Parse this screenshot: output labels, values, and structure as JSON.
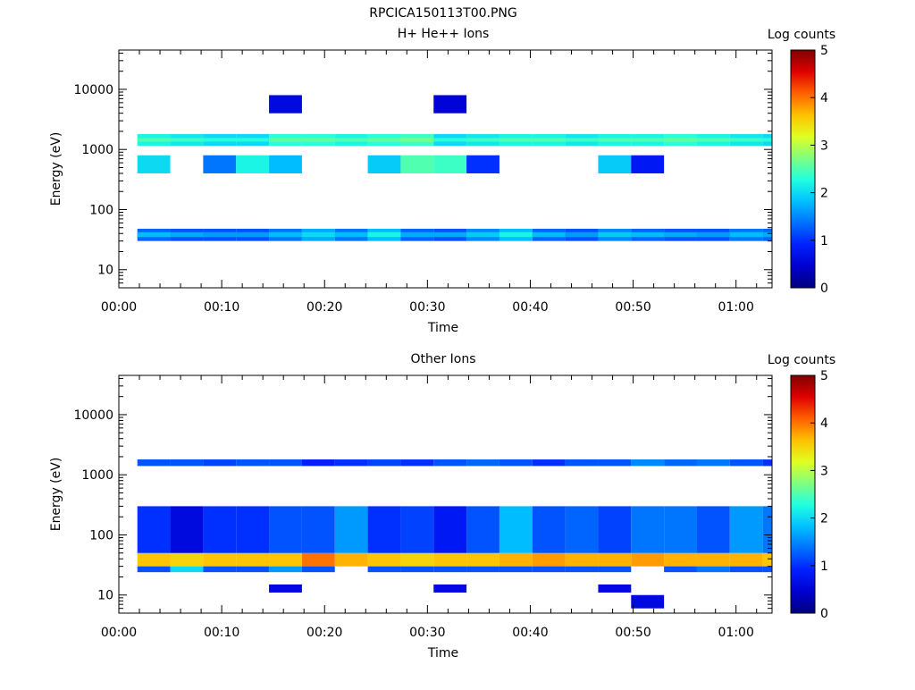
{
  "figure_title": "RPCICA150113T00.PNG",
  "colorbar_colormap": [
    "#00007f",
    "#0000d0",
    "#0020ff",
    "#0070ff",
    "#00c0ff",
    "#20ffe0",
    "#80ff80",
    "#e0ff20",
    "#ffc000",
    "#ff6000",
    "#e00000",
    "#7f0000"
  ],
  "chart_data": [
    {
      "type": "heatmap",
      "title": "H+ He++ Ions",
      "xlabel": "Time",
      "ylabel": "Energy (eV)",
      "y_scale": "log",
      "ylim": [
        5,
        45000
      ],
      "xlim_minutes": [
        0,
        63.5
      ],
      "x_ticks": [
        "00:00",
        "00:10",
        "00:20",
        "00:30",
        "00:40",
        "00:50",
        "01:00"
      ],
      "y_ticks": [
        "10",
        "100",
        "1000",
        "10000"
      ],
      "colorbar": {
        "label": "Log counts",
        "min": 0,
        "max": 5,
        "ticks": [
          "0",
          "1",
          "2",
          "3",
          "4",
          "5"
        ]
      },
      "time_bin_starts_minutes": [
        1.8,
        5,
        8.2,
        11.4,
        14.6,
        17.8,
        21,
        24.2,
        27.4,
        30.6,
        33.8,
        37,
        40.2,
        43.4,
        46.6,
        49.8,
        53,
        56.2,
        59.4,
        62.6
      ],
      "cells": [
        {
          "e_low": 1150,
          "e_high": 1800,
          "values": [
            2.2,
            2.1,
            2.0,
            2.0,
            2.3,
            2.3,
            2.2,
            2.3,
            2.4,
            2.0,
            2.1,
            2.2,
            2.2,
            2.1,
            2.2,
            2.2,
            2.3,
            2.2,
            2.1,
            2.0
          ]
        },
        {
          "e_low": 1350,
          "e_high": 1550,
          "values": [
            2.5,
            2.4,
            2.3,
            2.3,
            2.6,
            2.6,
            2.5,
            2.6,
            2.7,
            2.3,
            2.4,
            2.5,
            2.5,
            2.4,
            2.5,
            2.5,
            2.6,
            2.5,
            2.4,
            2.3
          ]
        },
        {
          "e_low": 30,
          "e_high": 48,
          "values": [
            1.3,
            1.2,
            1.2,
            1.2,
            1.4,
            1.7,
            1.4,
            1.8,
            1.3,
            1.2,
            1.5,
            1.8,
            1.3,
            1.2,
            1.5,
            1.3,
            1.2,
            1.2,
            1.4,
            1.3
          ]
        },
        {
          "e_low": 35,
          "e_high": 42,
          "values": [
            1.8,
            1.7,
            1.6,
            1.6,
            1.8,
            2.0,
            1.8,
            2.2,
            1.7,
            1.7,
            1.9,
            2.2,
            1.8,
            1.6,
            1.9,
            1.8,
            1.7,
            1.6,
            1.8,
            1.7
          ]
        },
        {
          "e_low": 400,
          "e_high": 800,
          "values": [
            2.0,
            0,
            1.4,
            2.2,
            1.8,
            0,
            0,
            1.9,
            2.5,
            2.4,
            1.0,
            0,
            0,
            0,
            1.9,
            0.8,
            0,
            0,
            0,
            0
          ]
        },
        {
          "e_low": 4000,
          "e_high": 8000,
          "values": [
            0,
            0,
            0,
            0,
            0.6,
            0,
            0,
            0,
            0,
            0.5,
            0,
            0,
            0,
            0,
            0,
            0,
            0,
            0,
            0,
            0
          ]
        }
      ]
    },
    {
      "type": "heatmap",
      "title": "Other Ions",
      "xlabel": "Time",
      "ylabel": "Energy (eV)",
      "y_scale": "log",
      "ylim": [
        5,
        45000
      ],
      "xlim_minutes": [
        0,
        63.5
      ],
      "x_ticks": [
        "00:00",
        "00:10",
        "00:20",
        "00:30",
        "00:40",
        "00:50",
        "01:00"
      ],
      "y_ticks": [
        "10",
        "100",
        "1000",
        "10000"
      ],
      "colorbar": {
        "label": "Log counts",
        "min": 0,
        "max": 5,
        "ticks": [
          "0",
          "1",
          "2",
          "3",
          "4",
          "5"
        ]
      },
      "time_bin_starts_minutes": [
        1.8,
        5,
        8.2,
        11.4,
        14.6,
        17.8,
        21,
        24.2,
        27.4,
        30.6,
        33.8,
        37,
        40.2,
        43.4,
        46.6,
        49.8,
        53,
        56.2,
        59.4,
        62.6
      ],
      "cells": [
        {
          "e_low": 30,
          "e_high": 50,
          "values": [
            3.6,
            3.5,
            3.6,
            3.6,
            3.6,
            4.0,
            3.7,
            3.6,
            3.5,
            3.6,
            3.6,
            3.7,
            3.8,
            3.7,
            3.7,
            3.8,
            3.7,
            3.7,
            3.7,
            3.6
          ]
        },
        {
          "e_low": 24,
          "e_high": 30,
          "values": [
            1.2,
            2.0,
            1.2,
            1.2,
            1.6,
            1.2,
            0,
            1.2,
            1.2,
            1.2,
            1.2,
            1.2,
            1.2,
            1.2,
            1.2,
            0,
            1.2,
            1.4,
            1.2,
            1.2
          ]
        },
        {
          "e_low": 50,
          "e_high": 300,
          "values": [
            1.0,
            0.6,
            1.0,
            1.0,
            1.2,
            1.2,
            1.6,
            1.0,
            1.1,
            0.8,
            1.2,
            1.8,
            1.2,
            1.3,
            1.1,
            1.4,
            1.4,
            1.2,
            1.6,
            1.4
          ]
        },
        {
          "e_low": 1400,
          "e_high": 1800,
          "values": [
            1.2,
            1.2,
            1.1,
            1.2,
            1.2,
            0.9,
            1.0,
            1.1,
            1.0,
            1.2,
            1.3,
            1.2,
            1.0,
            1.2,
            1.2,
            1.5,
            1.3,
            1.4,
            1.2,
            1.0
          ]
        },
        {
          "e_low": 11,
          "e_high": 15,
          "values": [
            0,
            0,
            0,
            0,
            0.6,
            0,
            0,
            0,
            0,
            0.6,
            0,
            0,
            0,
            0,
            0.6,
            0,
            0,
            0,
            0,
            0
          ]
        },
        {
          "e_low": 6,
          "e_high": 10,
          "values": [
            0,
            0,
            0,
            0,
            0,
            0,
            0,
            0,
            0,
            0,
            0,
            0,
            0,
            0,
            0,
            0.6,
            0,
            0,
            0,
            0
          ]
        }
      ]
    }
  ]
}
